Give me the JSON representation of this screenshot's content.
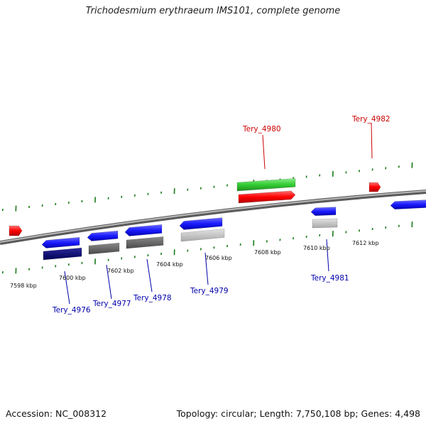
{
  "header": {
    "title": "Trichodesmium erythraeum IMS101, complete genome"
  },
  "footer": {
    "accession": "Accession: NC_008312",
    "topology": "Topology: circular; Length: 7,750,108 bp; Genes: 4,498"
  },
  "colors": {
    "backbone": "#7a7a7a",
    "forward_gene": "#ff0000",
    "reverse_gene": "#1a1aff",
    "rna_feature": "#33cc33",
    "forward_label": "#cc0000",
    "reverse_label": "#0000aa",
    "tick": "#1a7a1a"
  },
  "map": {
    "tick_labels": [
      "7598 kbp",
      "7600 kbp",
      "7602 kbp",
      "7604 kbp",
      "7606 kbp",
      "7608 kbp",
      "7610 kbp",
      "7612 kbp"
    ],
    "forward_labels": [
      "Tery_4980",
      "Tery_4982"
    ],
    "reverse_labels": [
      "Tery_4976",
      "Tery_4977",
      "Tery_4978",
      "Tery_4979",
      "Tery_4981"
    ]
  }
}
